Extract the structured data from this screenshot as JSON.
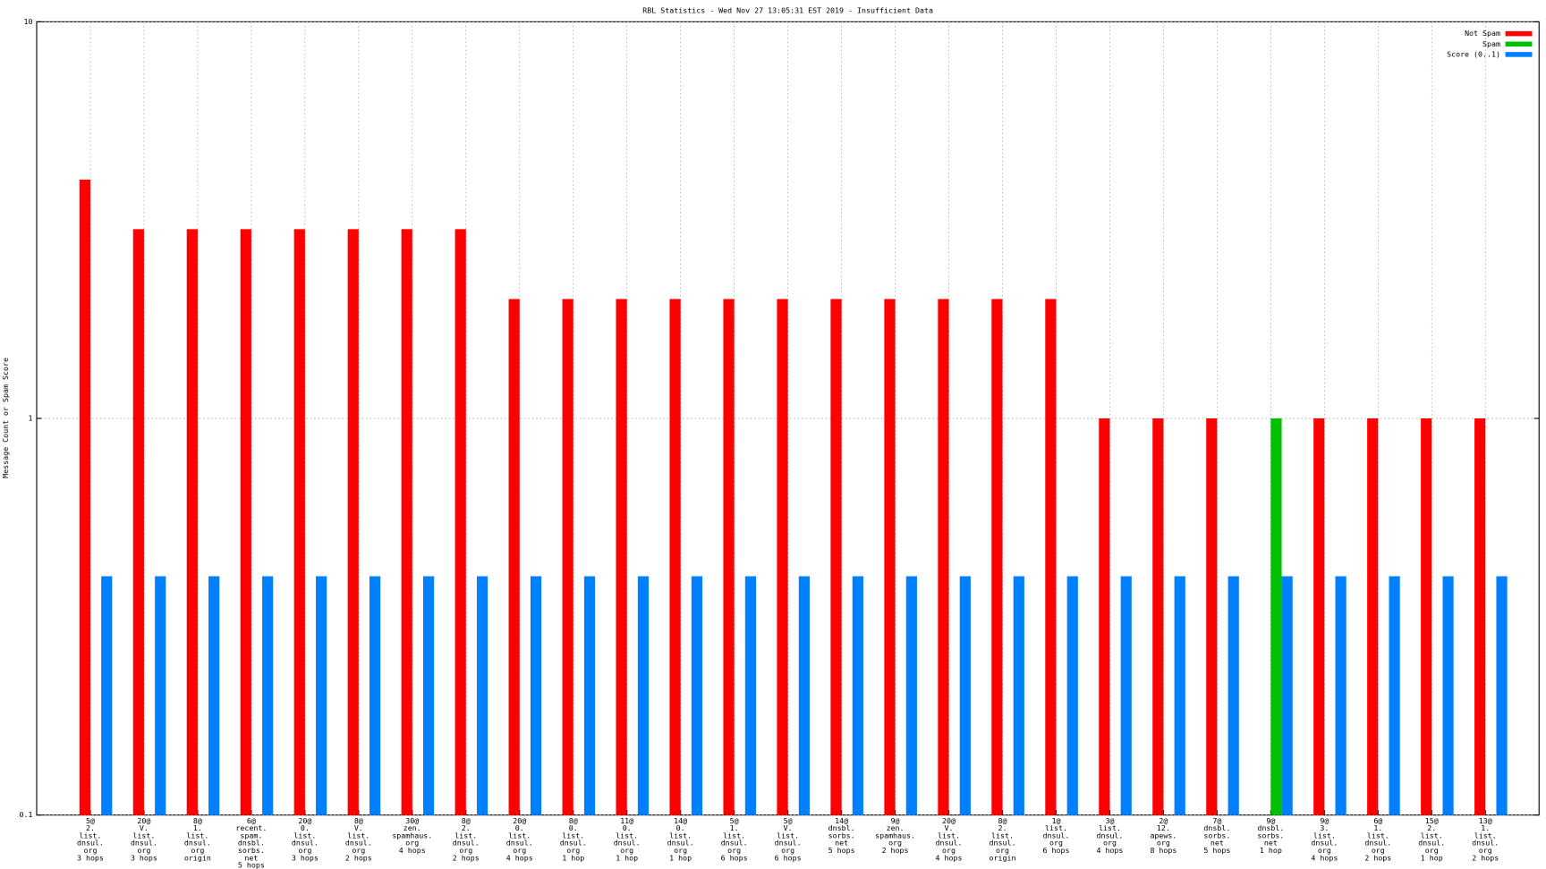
{
  "chart_data": {
    "type": "bar",
    "title": "RBL Statistics - Wed Nov 27 13:05:31 EST 2019 - Insufficient Data",
    "y_label": "Message Count or Spam Score",
    "log_scale": true,
    "grid": true,
    "legend": "top-right",
    "ylim": [
      0.1,
      10
    ],
    "yticks": [
      0.1,
      1,
      10
    ],
    "categories": [
      [
        "5@",
        "2.",
        "list.",
        "dnsul.",
        "org",
        "3 hops"
      ],
      [
        "20@",
        "V.",
        "list.",
        "dnsul.",
        "org",
        "3 hops"
      ],
      [
        "8@",
        "1.",
        "list.",
        "dnsul.",
        "org",
        "origin"
      ],
      [
        "6@",
        "recent.",
        "spam.",
        "dnsbl.",
        "sorbs.",
        "net",
        "5 hops"
      ],
      [
        "20@",
        "0.",
        "list.",
        "dnsul.",
        "org",
        "3 hops"
      ],
      [
        "8@",
        "V.",
        "list.",
        "dnsul.",
        "org",
        "2 hops"
      ],
      [
        "30@",
        "zen.",
        "spamhaus.",
        "org",
        "4 hops"
      ],
      [
        "8@",
        "2.",
        "list.",
        "dnsul.",
        "org",
        "2 hops"
      ],
      [
        "20@",
        "0.",
        "list.",
        "dnsul.",
        "org",
        "4 hops"
      ],
      [
        "8@",
        "0.",
        "list.",
        "dnsul.",
        "org",
        "1 hop"
      ],
      [
        "11@",
        "0.",
        "list.",
        "dnsul.",
        "org",
        "1 hop"
      ],
      [
        "14@",
        "0.",
        "list.",
        "dnsul.",
        "org",
        "1 hop"
      ],
      [
        "5@",
        "1.",
        "list.",
        "dnsul.",
        "org",
        "6 hops"
      ],
      [
        "5@",
        "V.",
        "list.",
        "dnsul.",
        "org",
        "6 hops"
      ],
      [
        "14@",
        "dnsbl.",
        "sorbs.",
        "net",
        "5 hops"
      ],
      [
        "9@",
        "zen.",
        "spamhaus.",
        "org",
        "2 hops"
      ],
      [
        "20@",
        "V.",
        "list.",
        "dnsul.",
        "org",
        "4 hops"
      ],
      [
        "8@",
        "2.",
        "list.",
        "dnsul.",
        "org",
        "origin"
      ],
      [
        "1@",
        "list.",
        "dnsul.",
        "org",
        "6 hops"
      ],
      [
        "3@",
        "list.",
        "dnsul.",
        "org",
        "4 hops"
      ],
      [
        "2@",
        "12.",
        "apews.",
        "org",
        "8 hops"
      ],
      [
        "7@",
        "dnsbl.",
        "sorbs.",
        "net",
        "5 hops"
      ],
      [
        "9@",
        "dnsbl.",
        "sorbs.",
        "net",
        "1 hop"
      ],
      [
        "9@",
        "3.",
        "list.",
        "dnsul.",
        "org",
        "4 hops"
      ],
      [
        "6@",
        "1.",
        "list.",
        "dnsul.",
        "org",
        "2 hops"
      ],
      [
        "15@",
        "2.",
        "list.",
        "dnsul.",
        "org",
        "1 hop"
      ],
      [
        "13@",
        "1.",
        "list.",
        "dnsul.",
        "org",
        "2 hops"
      ]
    ],
    "series": [
      {
        "name": "Not Spam",
        "color": "#ff0000",
        "values": [
          4,
          3,
          3,
          3,
          3,
          3,
          3,
          3,
          2,
          2,
          2,
          2,
          2,
          2,
          2,
          2,
          2,
          2,
          2,
          1,
          1,
          1,
          null,
          1,
          1,
          1,
          1
        ]
      },
      {
        "name": "Spam",
        "color": "#00c000",
        "values": [
          null,
          null,
          null,
          null,
          null,
          null,
          null,
          null,
          null,
          null,
          null,
          null,
          null,
          null,
          null,
          null,
          null,
          null,
          null,
          null,
          null,
          null,
          1,
          null,
          null,
          null,
          null
        ]
      },
      {
        "name": "Score (0..1)",
        "color": "#0080ff",
        "values": [
          0.4,
          0.4,
          0.4,
          0.4,
          0.4,
          0.4,
          0.4,
          0.4,
          0.4,
          0.4,
          0.4,
          0.4,
          0.4,
          0.4,
          0.4,
          0.4,
          0.4,
          0.4,
          0.4,
          0.4,
          0.4,
          0.4,
          0.4,
          0.4,
          0.4,
          0.4,
          0.4
        ]
      }
    ]
  }
}
